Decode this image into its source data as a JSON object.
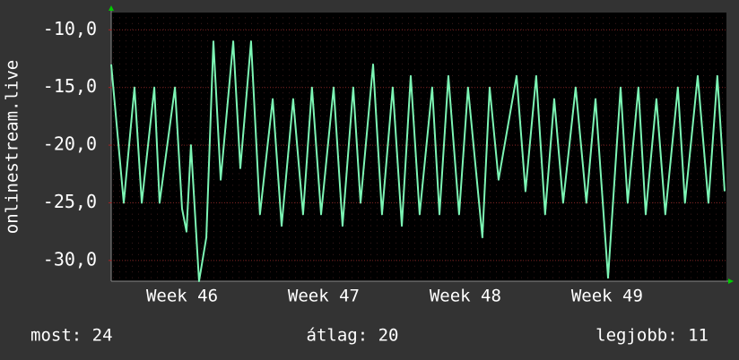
{
  "chart_data": {
    "type": "line",
    "ylabel": "onlinestream.live",
    "x": [
      0,
      0.62,
      1.15,
      1.51,
      2.13,
      2.39,
      3.15,
      3.5,
      3.72,
      3.94,
      4.34,
      4.7,
      5.05,
      5.41,
      6.03,
      6.38,
      6.91,
      7.35,
      7.98,
      8.42,
      8.99,
      9.48,
      9.92,
      10.37,
      10.99,
      11.43,
      11.96,
      12.32,
      12.94,
      13.38,
      13.91,
      14.36,
      14.8,
      15.24,
      15.86,
      16.22,
      16.66,
      17.19,
      17.63,
      18.34,
      18.7,
      19.14,
      20.03,
      20.47,
      21.0,
      21.44,
      21.89,
      22.33,
      22.95,
      23.48,
      23.93,
      24.55,
      25.17,
      25.52,
      26.05,
      26.41,
      26.94,
      27.38,
      28.0,
      28.35,
      28.98,
      29.51,
      29.95,
      30.31
    ],
    "values": [
      -13,
      -25,
      -15,
      -25,
      -15,
      -25,
      -15,
      -25.5,
      -27.5,
      -20,
      -31.8,
      -28,
      -11,
      -23,
      -11,
      -22,
      -11,
      -26,
      -16,
      -27,
      -16,
      -26,
      -15,
      -26,
      -15,
      -27,
      -15,
      -25,
      -13,
      -26,
      -15,
      -27,
      -14,
      -26,
      -15,
      -26,
      -14,
      -26,
      -15,
      -28,
      -15,
      -23,
      -14,
      -24,
      -14,
      -26,
      -16,
      -25,
      -15,
      -25,
      -16,
      -31.5,
      -15,
      -25,
      -15,
      -26,
      -16,
      -26,
      -15,
      -25,
      -14,
      -25,
      -14,
      -24
    ],
    "color": "#7cf5b4",
    "xlim": [
      0,
      30.4
    ],
    "xticks": [
      {
        "value": 3.5,
        "label": "Week 46"
      },
      {
        "value": 10.5,
        "label": "Week 47"
      },
      {
        "value": 17.5,
        "label": "Week 48"
      },
      {
        "value": 24.5,
        "label": "Week 49"
      }
    ],
    "ylim": [
      -31.8,
      -8.5
    ],
    "yticks": [
      {
        "value": -10,
        "label": "-10,0"
      },
      {
        "value": -15,
        "label": "-15,0"
      },
      {
        "value": -20,
        "label": "-20,0"
      },
      {
        "value": -25,
        "label": "-25,0"
      },
      {
        "value": -30,
        "label": "-30,0"
      }
    ],
    "grid": true
  },
  "stats": [
    "most: 24",
    "átlag: 20",
    "legjobb: 11"
  ]
}
